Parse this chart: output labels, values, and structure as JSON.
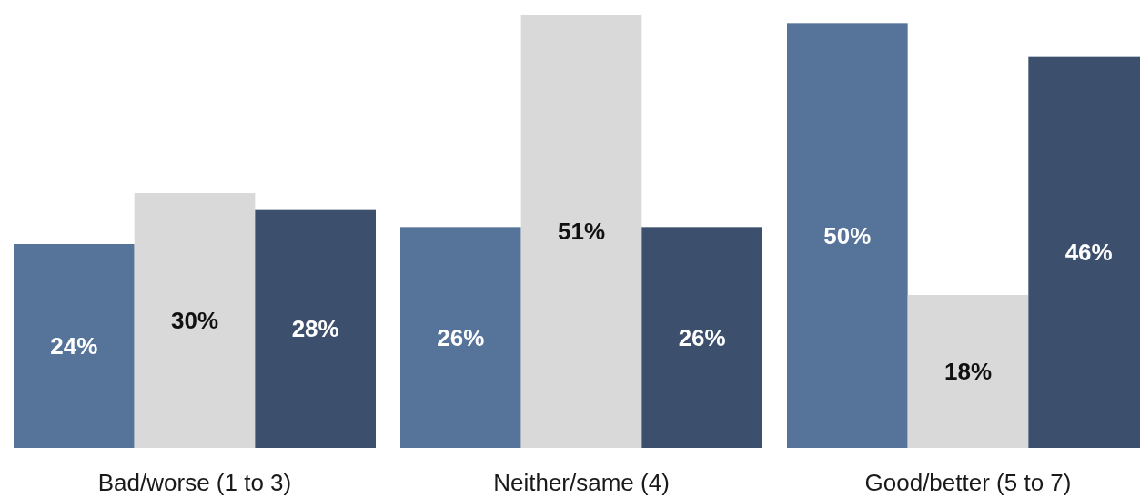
{
  "chart_data": {
    "type": "bar",
    "categories": [
      "Bad/worse (1 to 3)",
      "Neither/same (4)",
      "Good/better (5 to 7)"
    ],
    "series": [
      {
        "color": "#56739a",
        "values": [
          24,
          26,
          50
        ],
        "value_labels": [
          "24%",
          "26%",
          "50%"
        ]
      },
      {
        "color": "#d9d9d9",
        "values": [
          30,
          51,
          18
        ],
        "value_labels": [
          "30%",
          "51%",
          "18%"
        ]
      },
      {
        "color": "#3c4f6c",
        "values": [
          28,
          26,
          46
        ],
        "value_labels": [
          "28%",
          "26%",
          "46%"
        ]
      }
    ]
  }
}
